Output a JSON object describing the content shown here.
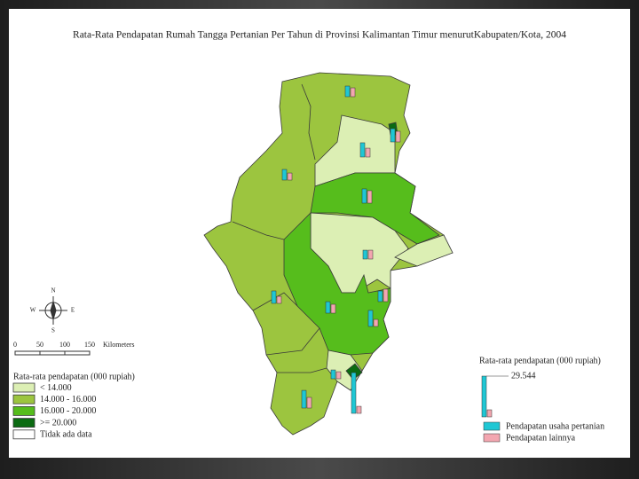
{
  "title": "Rata-Rata Pendapatan Rumah Tangga Pertanian Per Tahun di Provinsi Kalimantan Timur menurutKabupaten/Kota, 2004",
  "compass": {
    "n": "N",
    "e": "E",
    "s": "S",
    "w": "W"
  },
  "scale_bar": {
    "ticks": [
      0,
      50,
      100,
      150
    ],
    "unit": "Kilometers"
  },
  "legend": {
    "title": "Rata-rata pendapatan (000 rupiah)",
    "classes": [
      "< 14.000",
      "14.000 - 16.000",
      "16.000 - 20.000",
      ">= 20.000",
      "Tidak ada data"
    ]
  },
  "chart_legend": {
    "title": "Rata-rata pendapatan (000 rupiah)",
    "max": {
      "value": 29544,
      "label": "29.544"
    },
    "series": [
      "Pendapatan usaha pertanian",
      "Pendapatan lainnya"
    ]
  },
  "districts": [
    {
      "farm": 7700,
      "other": 6400
    },
    {
      "farm": 9600,
      "other": 7700
    },
    {
      "farm": 10300,
      "other": 6400
    },
    {
      "farm": 7700,
      "other": 5100
    },
    {
      "farm": 10300,
      "other": 9000
    },
    {
      "farm": 6400,
      "other": 6400
    },
    {
      "farm": 9000,
      "other": 5100
    },
    {
      "farm": 7700,
      "other": 9000
    },
    {
      "farm": 8300,
      "other": 6400
    },
    {
      "farm": 11600,
      "other": 5100
    },
    {
      "farm": 6400,
      "other": 5100
    },
    {
      "farm": 29500,
      "other": 5100
    },
    {
      "farm": 12800,
      "other": 7700
    }
  ]
}
